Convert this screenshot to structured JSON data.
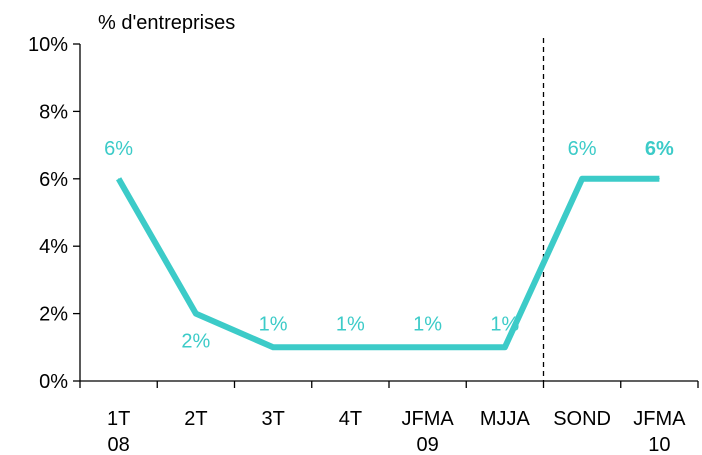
{
  "chart_data": {
    "type": "line",
    "ylabel": "% d'entreprises",
    "xlabel": "",
    "ylim": [
      0,
      10
    ],
    "yticks": [
      0,
      2,
      4,
      6,
      8,
      10
    ],
    "ytick_labels": [
      "0%",
      "2%",
      "4%",
      "6%",
      "8%",
      "10%"
    ],
    "categories": [
      [
        "1T",
        "08"
      ],
      [
        "2T",
        ""
      ],
      [
        "3T",
        ""
      ],
      [
        "4T",
        ""
      ],
      [
        "JFMA",
        "09"
      ],
      [
        "MJJA",
        ""
      ],
      [
        "SOND",
        ""
      ],
      [
        "JFMA",
        "10"
      ]
    ],
    "series": [
      {
        "values": [
          6,
          2,
          1,
          1,
          1,
          1,
          6,
          6
        ],
        "labels": [
          "6%",
          "2%",
          "1%",
          "1%",
          "1%",
          "1%",
          "6%",
          "6%"
        ],
        "bold_labels": [
          false,
          false,
          false,
          false,
          false,
          false,
          false,
          true
        ],
        "color": "#3CCBC8"
      }
    ],
    "divider_after_category_index": 5,
    "grid": false,
    "legend": "none"
  }
}
